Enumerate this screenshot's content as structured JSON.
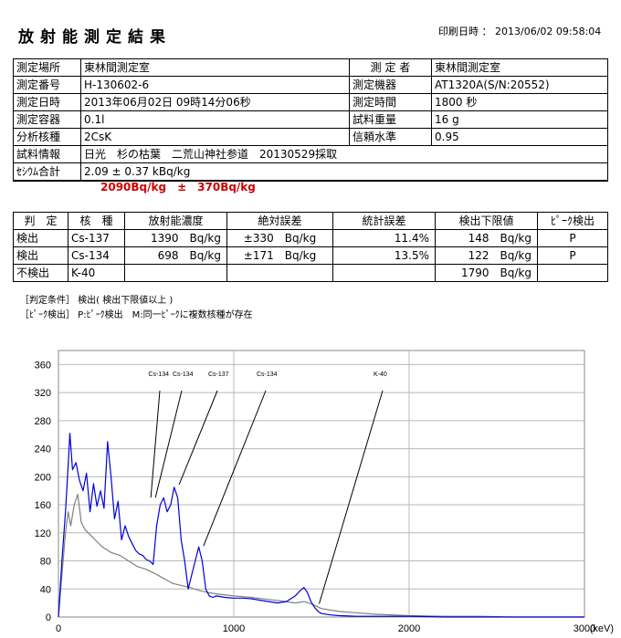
{
  "header": {
    "title": "放射能測定結果",
    "print_label": "印刷日時 ：",
    "print_value": "2013/06/02 09:58:04"
  },
  "info": {
    "place_label": "測定場所",
    "place_value": "東林間測定室",
    "measurer_label": "測 定 者",
    "measurer_value": "東林間測定室",
    "number_label": "測定番号",
    "number_value": "H-130602-6",
    "device_label": "測定機器",
    "device_value": "AT1320A(S/N:20552)",
    "datetime_label": "測定日時",
    "datetime_value": "2013年06月02日 09時14分06秒",
    "time_label": "測定時間",
    "time_value": "1800 秒",
    "container_label": "測定容器",
    "container_value": "0.1l",
    "weight_label": "試料重量",
    "weight_value": "16 g",
    "nuclide_label": "分析核種",
    "nuclide_value": "2CsK",
    "confidence_label": "信頼水準",
    "confidence_value": "0.95",
    "sample_label": "試料情報",
    "sample_value": "日光　杉の枯葉　二荒山神社参道　20130529採取",
    "total_label": "ｾｼｳﾑ合計",
    "total_value": "2.09 ± 0.37 kBq/kg"
  },
  "converted_total": "2090Bq/kg　±　370Bq/kg",
  "results": {
    "headers": [
      "判　定",
      "核　種",
      "放射能濃度",
      "絶対誤差",
      "統計誤差",
      "検出下限値",
      "ﾋﾟｰｸ検出"
    ],
    "rows": [
      [
        "検出",
        "Cs-137",
        "1390　Bq/kg",
        "±330　Bq/kg",
        "11.4%",
        "148　Bq/kg",
        "P"
      ],
      [
        "検出",
        "Cs-134",
        "698　Bq/kg",
        "±171　Bq/kg",
        "13.5%",
        "122　Bq/kg",
        "P"
      ],
      [
        "不検出",
        "K-40",
        "",
        "",
        "",
        "1790　Bq/kg",
        ""
      ]
    ]
  },
  "notes": {
    "line1": "［判定条件］ 検出( 検出下限値以上 )",
    "line2": "［ﾋﾟｰｸ検出］ P:ﾋﾟｰｸ検出　M:同一ﾋﾟｰｸに複数核種が存在"
  },
  "chart_data": {
    "type": "line",
    "xlim": [
      0,
      3000
    ],
    "ylim": [
      0,
      380
    ],
    "x_ticks": [
      "0",
      "1000",
      "2000",
      "3000"
    ],
    "x_unit": "(keV)",
    "y_ticks": [
      "0",
      "40",
      "80",
      "120",
      "160",
      "200",
      "240",
      "280",
      "320",
      "360"
    ],
    "grid": true,
    "series": [
      {
        "name": "",
        "color": "#0000dd",
        "x": [
          0,
          20,
          40,
          55,
          65,
          80,
          100,
          120,
          140,
          160,
          180,
          200,
          220,
          240,
          260,
          280,
          300,
          320,
          340,
          360,
          380,
          400,
          420,
          440,
          460,
          480,
          500,
          520,
          540,
          560,
          580,
          600,
          620,
          640,
          660,
          680,
          700,
          720,
          740,
          760,
          780,
          800,
          820,
          840,
          860,
          880,
          900,
          950,
          1000,
          1050,
          1100,
          1150,
          1200,
          1250,
          1300,
          1350,
          1380,
          1400,
          1420,
          1440,
          1460,
          1480,
          1500,
          1550,
          1600,
          1700,
          1800,
          1900,
          2000,
          2200,
          2400,
          2600,
          2800,
          3000
        ],
        "y": [
          0,
          80,
          150,
          215,
          262,
          210,
          220,
          195,
          180,
          205,
          150,
          190,
          158,
          180,
          155,
          250,
          200,
          140,
          165,
          110,
          130,
          115,
          105,
          95,
          90,
          88,
          82,
          80,
          75,
          130,
          160,
          170,
          150,
          160,
          185,
          170,
          110,
          80,
          40,
          60,
          80,
          100,
          80,
          40,
          30,
          28,
          30,
          28,
          27,
          27,
          26,
          24,
          22,
          20,
          22,
          30,
          38,
          42,
          35,
          22,
          14,
          8,
          5,
          3,
          2,
          1,
          1,
          1,
          1,
          0,
          0,
          0,
          0,
          0
        ]
      },
      {
        "name": "",
        "color": "#808080",
        "x": [
          0,
          20,
          40,
          55,
          70,
          90,
          110,
          130,
          150,
          170,
          190,
          210,
          250,
          300,
          350,
          400,
          450,
          500,
          550,
          600,
          650,
          700,
          750,
          800,
          850,
          900,
          1000,
          1100,
          1200,
          1300,
          1350,
          1400,
          1450,
          1500,
          1600,
          1800,
          2000,
          2200,
          2400,
          2600,
          2800,
          3000
        ],
        "y": [
          0,
          60,
          120,
          150,
          130,
          160,
          175,
          135,
          125,
          120,
          115,
          110,
          100,
          92,
          88,
          80,
          72,
          68,
          62,
          55,
          48,
          45,
          42,
          38,
          35,
          33,
          30,
          28,
          25,
          22,
          20,
          22,
          18,
          12,
          8,
          4,
          2,
          1,
          1,
          0,
          0,
          0
        ]
      }
    ],
    "annotations": [
      {
        "label": "Cs-134",
        "energy": 605
      },
      {
        "label": "Cs-134",
        "energy": 605
      },
      {
        "label": "Cs-137",
        "energy": 662
      },
      {
        "label": "Cs-134",
        "energy": 796
      },
      {
        "label": "K-40",
        "energy": 1461
      }
    ]
  }
}
